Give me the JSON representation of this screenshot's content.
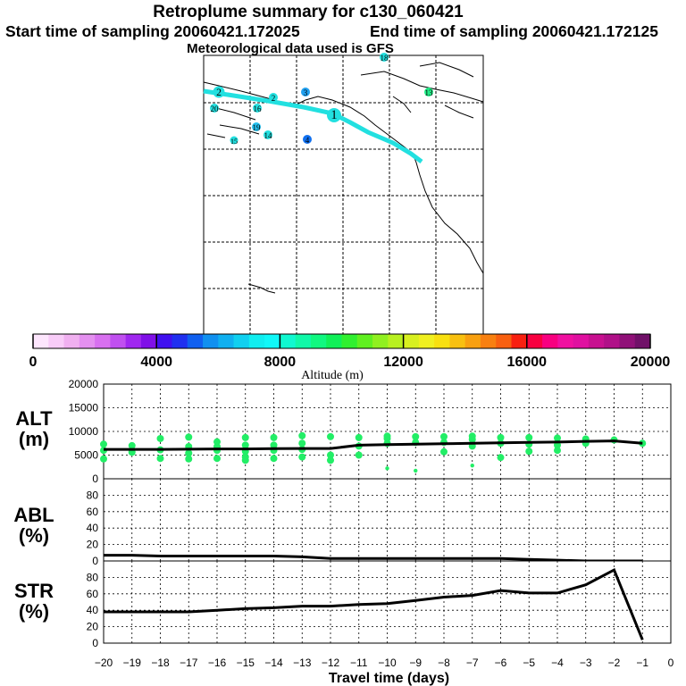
{
  "header": {
    "title": "Retroplume summary for c130_060421",
    "start_label": "Start time of sampling 20060421.172025",
    "end_label": "End time of sampling 20060421.172125",
    "met_label": "Meteorological data used is GFS"
  },
  "colors": {
    "track": "#22e0e0",
    "alt_points": "#22ee66",
    "line": "#000000"
  },
  "map": {
    "markers": [
      {
        "label": "1"
      },
      {
        "label": "2"
      },
      {
        "label": "2"
      },
      {
        "label": "3"
      },
      {
        "label": "4"
      },
      {
        "label": "13"
      },
      {
        "label": "14"
      },
      {
        "label": "15"
      },
      {
        "label": "16"
      },
      {
        "label": "19"
      },
      {
        "label": "20"
      },
      {
        "label": "18"
      }
    ]
  },
  "colorbar": {
    "title": "Altitude (m)",
    "ticks": [
      "0",
      "4000",
      "8000",
      "12000",
      "16000",
      "20000"
    ],
    "colors": [
      "#fde6fd",
      "#f8ccf8",
      "#f0b0f0",
      "#e490f0",
      "#d870f0",
      "#c050f0",
      "#a028f0",
      "#8010e8",
      "#4010f0",
      "#2030f0",
      "#1060f0",
      "#1090f0",
      "#10b0f0",
      "#10d0f0",
      "#10eef0",
      "#10f8f8",
      "#10f8d0",
      "#10f8a8",
      "#10f880",
      "#10f058",
      "#30f030",
      "#60f020",
      "#90f020",
      "#b8f020",
      "#d8f020",
      "#f0f020",
      "#f8e010",
      "#f8c010",
      "#f8a010",
      "#f88010",
      "#f86010",
      "#f82010",
      "#f80040",
      "#f80080",
      "#f010a0",
      "#e010a0",
      "#c81090",
      "#b01088",
      "#901078",
      "#701068"
    ]
  },
  "chart_data": [
    {
      "type": "line",
      "ylabel": "ALT\n(m)",
      "ylim": [
        0,
        20000
      ],
      "yticks": [
        "0",
        "5000",
        "10000",
        "15000",
        "20000"
      ],
      "x": [
        -20,
        -19,
        -18,
        -17,
        -16,
        -15,
        -14,
        -13,
        -12,
        -11,
        -10,
        -9,
        -8,
        -7,
        -6,
        -5,
        -4,
        -3,
        -2,
        -1
      ],
      "values": [
        6200,
        6200,
        6200,
        6250,
        6300,
        6300,
        6350,
        6400,
        6400,
        7100,
        7200,
        7300,
        7400,
        7500,
        7600,
        7700,
        7750,
        7900,
        8000,
        7500
      ],
      "scatter": {
        "x": [
          -20,
          -20,
          -20,
          -19,
          -19,
          -18,
          -18,
          -18,
          -17,
          -17,
          -17,
          -17,
          -16,
          -16,
          -16,
          -16,
          -15,
          -15,
          -15,
          -15,
          -15,
          -14,
          -14,
          -14,
          -14,
          -13,
          -13,
          -13,
          -13,
          -12,
          -12,
          -12,
          -11,
          -11,
          -11,
          -10,
          -10,
          -10,
          -10,
          -9,
          -9,
          -9,
          -8,
          -8,
          -8,
          -7,
          -7,
          -7,
          -7,
          -6,
          -6,
          -6,
          -5,
          -5,
          -5,
          -4,
          -4,
          -4,
          -3,
          -3,
          -2,
          -1
        ],
        "y": [
          7300,
          6000,
          4200,
          7000,
          5600,
          8500,
          6100,
          4300,
          8800,
          6800,
          5400,
          4200,
          7800,
          6800,
          6000,
          4300,
          8700,
          7100,
          5800,
          4600,
          3900,
          8700,
          7100,
          6000,
          4300,
          9100,
          7500,
          6200,
          4600,
          8900,
          5000,
          3900,
          8700,
          6900,
          5000,
          9000,
          8500,
          7500,
          2200,
          8900,
          7700,
          1700,
          8900,
          7700,
          5700,
          9000,
          8300,
          6900,
          2800,
          8700,
          7500,
          4500,
          8700,
          7300,
          5800,
          8600,
          7100,
          6000,
          8400,
          7500,
          8200,
          7500
        ]
      },
      "xrange": [
        -20,
        0
      ]
    },
    {
      "type": "line",
      "ylabel": "ABL\n(%)",
      "ylim": [
        0,
        100
      ],
      "yticks": [
        "0",
        "20",
        "40",
        "60",
        "80"
      ],
      "x": [
        -20,
        -19,
        -18,
        -17,
        -16,
        -15,
        -14,
        -13,
        -12,
        -11,
        -10,
        -9,
        -8,
        -7,
        -6,
        -5,
        -4,
        -3,
        -2,
        -1
      ],
      "values": [
        7,
        7,
        6,
        6,
        6,
        6,
        6,
        5,
        3,
        3,
        3,
        3,
        3,
        3,
        3,
        2,
        1,
        0,
        0,
        0
      ],
      "xrange": [
        -20,
        0
      ]
    },
    {
      "type": "line",
      "ylabel": "STR\n(%)",
      "ylim": [
        0,
        100
      ],
      "yticks": [
        "0",
        "20",
        "40",
        "60",
        "80"
      ],
      "x": [
        -20,
        -19,
        -18,
        -17,
        -16,
        -15,
        -14,
        -13,
        -12,
        -11,
        -10,
        -9,
        -8,
        -7,
        -6,
        -5,
        -4,
        -3,
        -2,
        -1
      ],
      "values": [
        38,
        38,
        38,
        38,
        40,
        42,
        43,
        45,
        45,
        47,
        48,
        52,
        56,
        58,
        64,
        61,
        61,
        71,
        89,
        4
      ],
      "xrange": [
        -20,
        0
      ],
      "xlabel": "Travel time (days)",
      "xticks": [
        "−20",
        "−19",
        "−18",
        "−17",
        "−16",
        "−15",
        "−14",
        "−13",
        "−12",
        "−11",
        "−10",
        "−9",
        "−8",
        "−7",
        "−6",
        "−5",
        "−4",
        "−3",
        "−2",
        "−1",
        "0"
      ]
    }
  ]
}
